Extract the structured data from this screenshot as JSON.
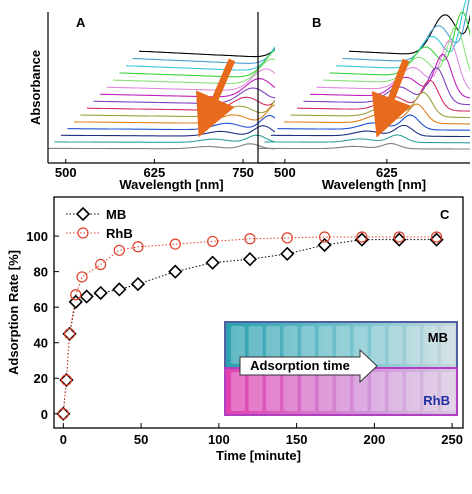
{
  "chart_data": [
    {
      "type": "spectra",
      "label": "A",
      "xlabel": "Wavelength [nm]",
      "ylabel": "Absorbance",
      "xlim": [
        475,
        795
      ],
      "xticks": [
        500,
        625,
        750
      ],
      "peak": 760,
      "shoulder": 700,
      "colors": [
        "#000000",
        "#4a9fd0",
        "#39c6d6",
        "#3bd23b",
        "#8be07a",
        "#e08ae0",
        "#c020c0",
        "#8040c0",
        "#d03060",
        "#a0a040",
        "#e08020",
        "#2050d0",
        "#203080",
        "#30a0a0",
        "#808080"
      ]
    },
    {
      "type": "spectra",
      "label": "B",
      "xlabel": "Wavelength [nm]",
      "xlim": [
        467,
        727
      ],
      "xticks": [
        500,
        625
      ],
      "peak": 630,
      "shoulder": 585,
      "colors": [
        "#000000",
        "#4a9fd0",
        "#39c6d6",
        "#3bd23b",
        "#8be07a",
        "#e08ae0",
        "#c020c0",
        "#8040c0",
        "#d03060",
        "#a0a040",
        "#e08020",
        "#2050d0",
        "#203080",
        "#30a0a0",
        "#808080"
      ]
    },
    {
      "type": "scatter",
      "label": "C",
      "xlabel": "Time [minute]",
      "ylabel": "Adsorption Rate [%]",
      "xlim": [
        -6,
        257
      ],
      "xticks": [
        0,
        50,
        100,
        150,
        200,
        250
      ],
      "ylim": [
        -8,
        122
      ],
      "yticks": [
        0,
        20,
        40,
        60,
        80,
        100
      ],
      "series": [
        {
          "name": "MB",
          "color": "#000000",
          "marker": "diamond",
          "x": [
            0,
            2,
            4,
            8,
            15,
            24,
            36,
            48,
            72,
            96,
            120,
            144,
            168,
            192,
            216,
            240
          ],
          "values": [
            0,
            19,
            45,
            63,
            66,
            68,
            70,
            73,
            80,
            85,
            87,
            90,
            95,
            98,
            98,
            98
          ]
        },
        {
          "name": "RhB",
          "color": "#e0402a",
          "marker": "circle",
          "x": [
            0,
            2,
            4,
            8,
            12,
            24,
            36,
            48,
            72,
            96,
            120,
            144,
            168,
            192,
            216,
            240
          ],
          "values": [
            0,
            19,
            45,
            67,
            77,
            84,
            92,
            94,
            95.5,
            97,
            98.5,
            99,
            99.5,
            99.5,
            99.5,
            99.5
          ]
        }
      ],
      "inset": {
        "top_label": "MB",
        "arrow_label": "Adsorption time",
        "bottom_label": "RhB"
      }
    }
  ]
}
